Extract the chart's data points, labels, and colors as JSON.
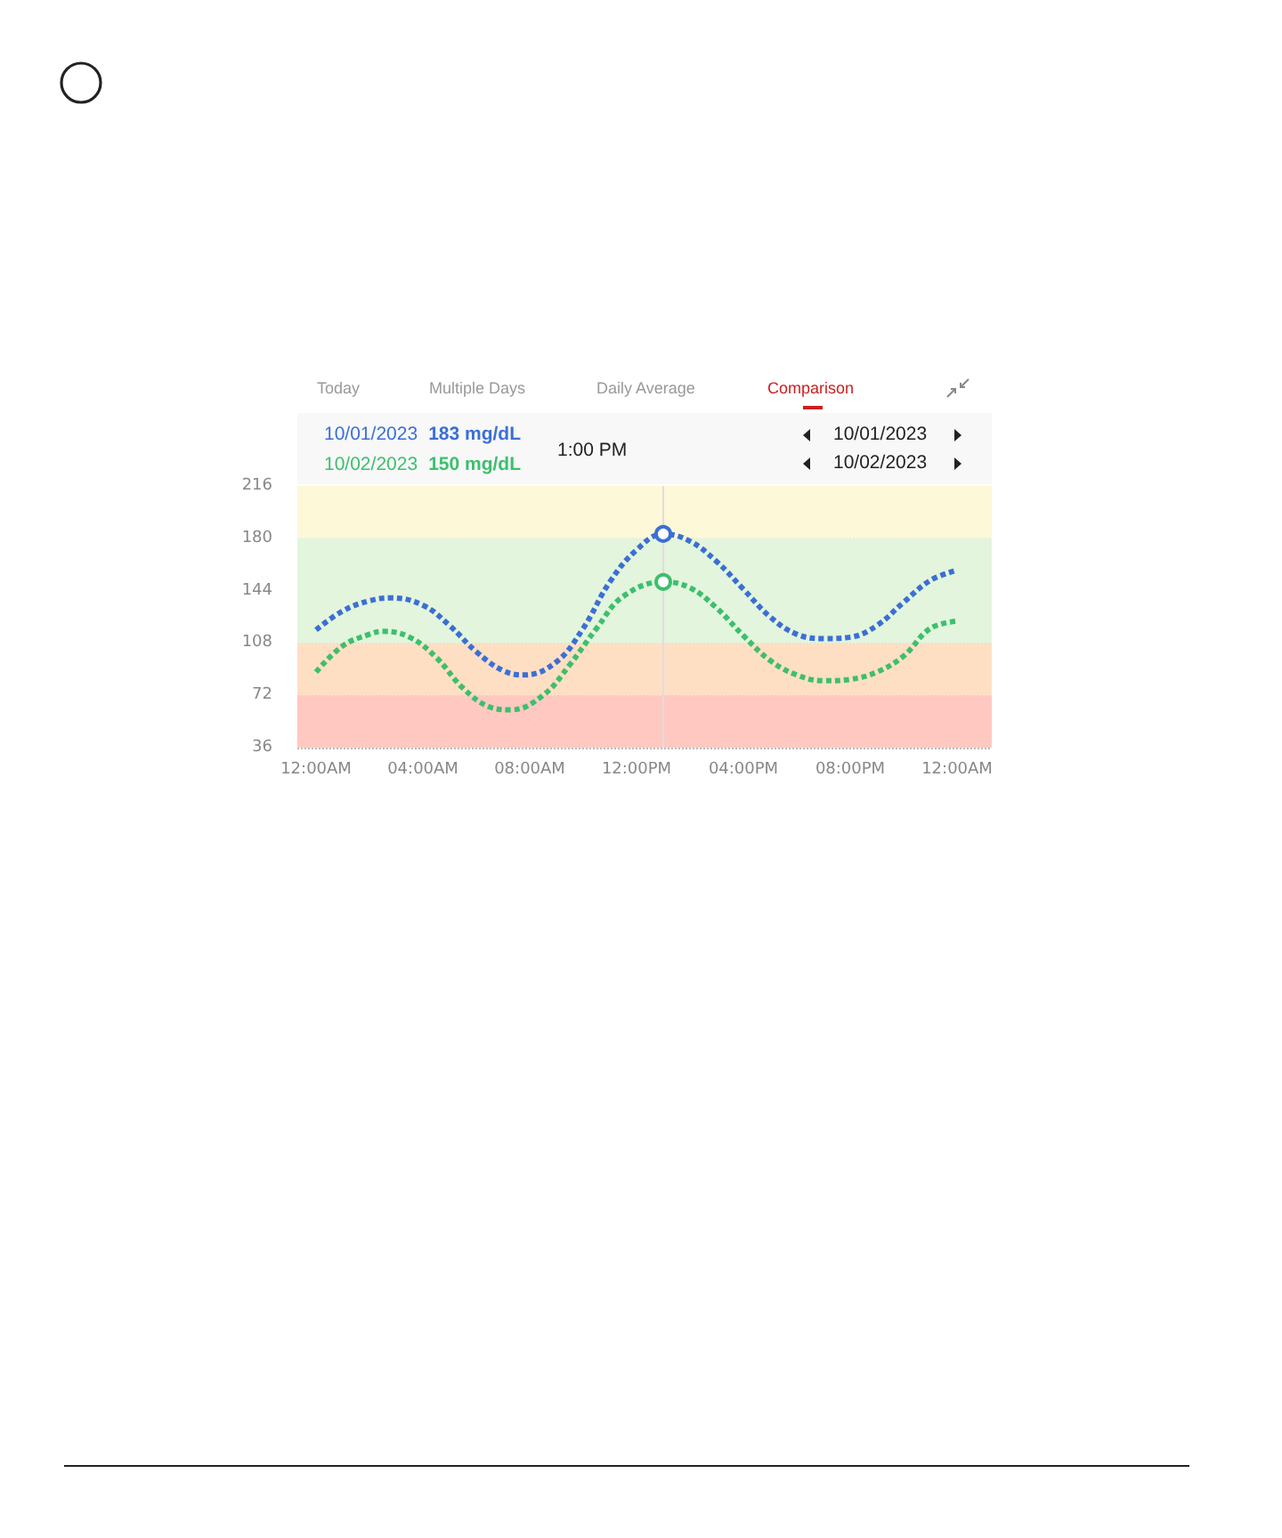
{
  "chart_data": {
    "type": "line",
    "annotations": [
      "Today",
      "Multiple Days",
      "Daily Average",
      "Comparison",
      "183 mg/dL",
      "150 mg/dL",
      "10/01/2023",
      "10/02/2023",
      "1:00 PM"
    ],
    "series": [
      {
        "name": "10/01/2023",
        "color": "#3b6fd6",
        "x": [
          0,
          1,
          2,
          2.8,
          4,
          5,
          6,
          7,
          7.8,
          9,
          10,
          11,
          12,
          13,
          14,
          15,
          16,
          17,
          18,
          19,
          20,
          21,
          22,
          23,
          24
        ],
        "values": [
          117,
          130,
          137,
          139,
          134,
          120,
          102,
          89,
          86,
          95,
          118,
          150,
          172,
          183,
          178,
          164,
          145,
          126,
          114,
          111,
          112,
          120,
          136,
          151,
          158
        ]
      },
      {
        "name": "10/02/2023",
        "color": "#3dbf6e",
        "x": [
          0,
          1,
          2,
          2.5,
          3.5,
          4.5,
          5.5,
          6.5,
          7.3,
          8.5,
          9.5,
          10.5,
          11.5,
          13,
          14,
          15,
          16,
          17,
          18,
          19,
          20,
          21,
          22,
          23,
          24
        ],
        "values": [
          88,
          106,
          114,
          116,
          112,
          98,
          77,
          64,
          62,
          72,
          93,
          118,
          140,
          150,
          146,
          132,
          113,
          96,
          86,
          82,
          83,
          88,
          99,
          118,
          123
        ]
      }
    ],
    "xlim": [
      -0.7,
      25.3
    ],
    "xticks": [
      {
        "value": 0,
        "label": "12:00AM"
      },
      {
        "value": 4,
        "label": "04:00AM"
      },
      {
        "value": 8,
        "label": "08:00AM"
      },
      {
        "value": 12,
        "label": "12:00PM"
      },
      {
        "value": 16,
        "label": "04:00PM"
      },
      {
        "value": 20,
        "label": "08:00PM"
      },
      {
        "value": 24,
        "label": "12:00AM"
      }
    ],
    "ylim": [
      36,
      216
    ],
    "yticks": [
      36,
      72,
      108,
      144,
      180,
      216
    ],
    "ref_lines": [
      {
        "axis": "x",
        "value": 13,
        "color": "#dedede"
      }
    ],
    "bands": [
      {
        "axis": "y",
        "from": 36,
        "to": 72,
        "color": "#ffc9c2"
      },
      {
        "axis": "y",
        "from": 72,
        "to": 108,
        "color": "#ffdfc4"
      },
      {
        "axis": "y",
        "from": 108,
        "to": 180,
        "color": "#e3f5dc"
      },
      {
        "axis": "y",
        "from": 180,
        "to": 216,
        "color": "#fdf8d8"
      }
    ],
    "grid": "y",
    "legend": "top left",
    "marker": "none",
    "line_style": "dotted"
  }
}
